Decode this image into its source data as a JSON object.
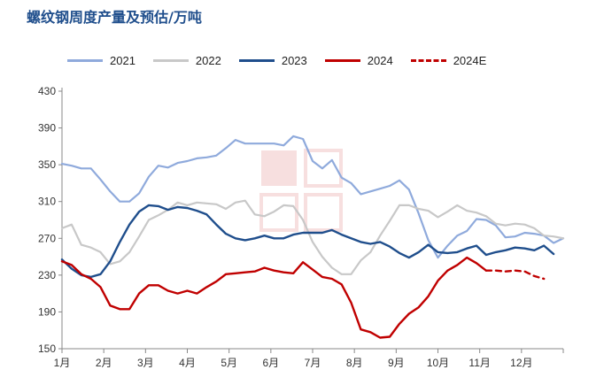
{
  "title": "螺纹钢周度产量及预估/万吨",
  "colors": {
    "2021": "#8faadc",
    "2022": "#c8c8c8",
    "2023": "#1f4e8c",
    "2024": "#c00000",
    "2024E": "#c00000"
  },
  "chart_data": {
    "type": "line",
    "title": "螺纹钢周度产量及预估/万吨",
    "xlabel": "",
    "ylabel": "",
    "ylim": [
      150,
      430
    ],
    "yticks": [
      150,
      190,
      230,
      270,
      310,
      350,
      390,
      430
    ],
    "xticks": [
      "1月",
      "2月",
      "3月",
      "4月",
      "5月",
      "6月",
      "7月",
      "8月",
      "9月",
      "10月",
      "11月",
      "12月"
    ],
    "legend_position": "top",
    "grid": false,
    "x_unit": "week",
    "series": [
      {
        "name": "2021",
        "style": "solid",
        "values": [
          351,
          349,
          346,
          346,
          334,
          321,
          310,
          310,
          319,
          337,
          349,
          347,
          352,
          354,
          357,
          358,
          360,
          368,
          377,
          373,
          373,
          373,
          373,
          371,
          381,
          378,
          354,
          346,
          355,
          336,
          330,
          318,
          321,
          324,
          327,
          333,
          323,
          297,
          268,
          249,
          262,
          273,
          278,
          291,
          290,
          284,
          271,
          272,
          276,
          275,
          273,
          265,
          270
        ]
      },
      {
        "name": "2022",
        "style": "solid",
        "values": [
          281,
          285,
          263,
          260,
          255,
          242,
          245,
          255,
          272,
          290,
          295,
          301,
          309,
          306,
          309,
          308,
          307,
          302,
          309,
          311,
          296,
          294,
          299,
          306,
          305,
          290,
          266,
          250,
          238,
          231,
          231,
          246,
          255,
          273,
          289,
          306,
          306,
          302,
          300,
          293,
          299,
          306,
          300,
          298,
          294,
          286,
          284,
          286,
          285,
          281,
          273,
          272,
          270
        ]
      },
      {
        "name": "2023",
        "style": "solid",
        "values": [
          247,
          237,
          230,
          228,
          231,
          245,
          266,
          285,
          299,
          306,
          305,
          301,
          304,
          303,
          300,
          296,
          285,
          275,
          270,
          268,
          270,
          273,
          270,
          270,
          274,
          276,
          276,
          276,
          279,
          274,
          270,
          266,
          264,
          266,
          261,
          254,
          249,
          255,
          263,
          255,
          254,
          255,
          259,
          262,
          252,
          255,
          257,
          260,
          259,
          257,
          262,
          253
        ]
      },
      {
        "name": "2024",
        "style": "solid",
        "values": [
          245,
          241,
          231,
          226,
          217,
          197,
          193,
          193,
          210,
          219,
          219,
          213,
          210,
          213,
          210,
          217,
          223,
          231,
          232,
          233,
          234,
          238,
          235,
          233,
          232,
          244,
          236,
          228,
          226,
          220,
          200,
          171,
          168,
          162,
          163,
          177,
          188,
          195,
          207,
          224,
          235,
          241,
          249,
          243,
          235
        ]
      },
      {
        "name": "2024E",
        "style": "dashed",
        "start_index": 44,
        "values": [
          235,
          235,
          234,
          235,
          234,
          229,
          226
        ]
      }
    ]
  }
}
